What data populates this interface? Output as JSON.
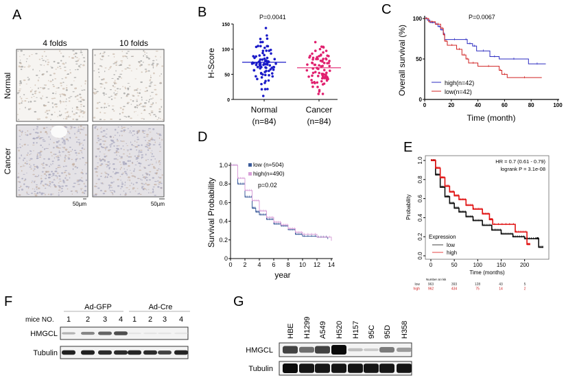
{
  "panels": {
    "A": {
      "label": "A",
      "columns": [
        "4 folds",
        "10 folds"
      ],
      "rows": [
        "Normal",
        "Cancer"
      ],
      "scale_bar": "50µm"
    },
    "B": {
      "label": "B"
    },
    "C": {
      "label": "C"
    },
    "D": {
      "label": "D"
    },
    "E": {
      "label": "E"
    },
    "F": {
      "label": "F",
      "groups": [
        "Ad-GFP",
        "Ad-Cre"
      ],
      "row_header": "mice NO.",
      "lanes": [
        "1",
        "2",
        "3",
        "4",
        "1",
        "2",
        "3",
        "4"
      ],
      "blots": [
        {
          "name": "HMGCL",
          "intensity": [
            0.25,
            0.45,
            0.6,
            0.7,
            0.03,
            0.03,
            0.03,
            0.03
          ]
        },
        {
          "name": "Tubulin",
          "intensity": [
            0.9,
            0.9,
            0.85,
            0.85,
            0.88,
            0.85,
            0.75,
            0.88
          ]
        }
      ]
    },
    "G": {
      "label": "G",
      "lanes": [
        "HBE",
        "H1299",
        "A549",
        "H520",
        "H157",
        "95C",
        "95D",
        "H358"
      ],
      "blots": [
        {
          "name": "HMGCL",
          "intensity": [
            0.75,
            0.55,
            0.75,
            1.0,
            0.2,
            0.15,
            0.5,
            0.35
          ]
        },
        {
          "name": "Tubulin",
          "intensity": [
            1.0,
            0.95,
            0.95,
            0.95,
            0.95,
            0.95,
            0.95,
            0.95
          ]
        }
      ]
    }
  },
  "chart_data": [
    {
      "panel": "B",
      "type": "scatter",
      "annotation": "P=0.0041",
      "ylabel": "H-Score",
      "ylim": [
        0,
        150
      ],
      "yticks": [
        "0",
        "50",
        "100",
        "150"
      ],
      "categories": [
        "Normal\n(n=84)",
        "Cancer\n(n=84)"
      ],
      "category_names": [
        "Normal",
        "Cancer"
      ],
      "category_n": [
        "(n=84)",
        "(n=84)"
      ],
      "series": [
        {
          "n": 84,
          "mean": 74,
          "min": 7,
          "max": 142,
          "color": "#1a1ac8"
        },
        {
          "n": 84,
          "mean": 63,
          "min": 11,
          "max": 114,
          "color": "#e0206e"
        }
      ]
    },
    {
      "panel": "C",
      "type": "line",
      "annotation": "P=0.0067",
      "xlabel": "Time (month)",
      "ylabel": "Overall survival (%)",
      "xlim": [
        0,
        100
      ],
      "ylim": [
        0,
        100
      ],
      "xticks": [
        "0",
        "20",
        "40",
        "60",
        "80",
        "100"
      ],
      "yticks": [
        "0",
        "50",
        "100"
      ],
      "legend": "bottom-left",
      "series": [
        {
          "name": "high(n=42)",
          "color": "#2a2ac0",
          "x": [
            0,
            2,
            4,
            8,
            10,
            12,
            14,
            15,
            30,
            32,
            36,
            39,
            49,
            56,
            78,
            91
          ],
          "y": [
            100,
            98,
            95,
            93,
            90,
            86,
            81,
            74,
            74,
            69,
            66,
            60,
            53,
            50,
            44,
            44
          ]
        },
        {
          "name": "low(n=42)",
          "color": "#d02020",
          "x": [
            0,
            3,
            8,
            12,
            14,
            15,
            17,
            24,
            28,
            31,
            33,
            40,
            56,
            58,
            62,
            88
          ],
          "y": [
            100,
            96,
            93,
            88,
            80,
            72,
            67,
            62,
            55,
            50,
            45,
            41,
            36,
            31,
            27,
            27
          ]
        }
      ]
    },
    {
      "panel": "D",
      "type": "line",
      "annotation": "p=0.02",
      "xlabel": "year",
      "ylabel": "Survival Probability",
      "xlim": [
        0,
        14
      ],
      "ylim": [
        0,
        1
      ],
      "xticks": [
        "0",
        "2",
        "4",
        "6",
        "8",
        "10",
        "12",
        "14"
      ],
      "yticks": [
        "0",
        "0.2",
        "0.4",
        "0.6",
        "0.8",
        "1.0"
      ],
      "legend": "top-center",
      "series": [
        {
          "name": "low (n=504)",
          "color": "#3a5a9a",
          "x": [
            0,
            1,
            2,
            3,
            3.5,
            4,
            5,
            6,
            7,
            8,
            9,
            10,
            12,
            13.5
          ],
          "y": [
            1,
            0.8,
            0.66,
            0.54,
            0.5,
            0.47,
            0.42,
            0.37,
            0.35,
            0.31,
            0.26,
            0.24,
            0.23,
            0.21
          ]
        },
        {
          "name": "high(n=490)",
          "color": "#d8a0d8",
          "x": [
            0,
            1,
            2,
            3,
            4,
            5,
            6,
            7,
            8,
            9,
            10,
            12,
            14
          ],
          "y": [
            1,
            0.86,
            0.73,
            0.62,
            0.51,
            0.44,
            0.39,
            0.36,
            0.32,
            0.28,
            0.26,
            0.23,
            0.19
          ]
        }
      ]
    },
    {
      "panel": "E",
      "type": "line",
      "annotations": [
        "HR = 0.7 (0.61 - 0.79)",
        "logrank P = 3.1e-08"
      ],
      "xlabel": "Time (months)",
      "ylabel": "Probability",
      "xlim": [
        0,
        240
      ],
      "ylim": [
        0,
        1
      ],
      "xticks": [
        "0",
        "50",
        "100",
        "150",
        "200"
      ],
      "yticks": [
        "0.0",
        "0.2",
        "0.4",
        "0.6",
        "0.8",
        "1.0"
      ],
      "legend_title": "Expression",
      "legend": "bottom-left",
      "series": [
        {
          "name": "low",
          "color": "#111111",
          "x": [
            0,
            10,
            20,
            30,
            40,
            50,
            60,
            75,
            90,
            110,
            130,
            150,
            175,
            200,
            225,
            230,
            240
          ],
          "y": [
            1,
            0.85,
            0.72,
            0.62,
            0.55,
            0.5,
            0.46,
            0.41,
            0.37,
            0.32,
            0.27,
            0.23,
            0.2,
            0.18,
            0.18,
            0.09,
            0.09
          ]
        },
        {
          "name": "high",
          "color": "#e01010",
          "x": [
            0,
            10,
            20,
            30,
            40,
            50,
            60,
            75,
            90,
            110,
            125,
            132,
            180,
            205,
            212
          ],
          "y": [
            1,
            0.92,
            0.82,
            0.73,
            0.67,
            0.63,
            0.59,
            0.53,
            0.49,
            0.44,
            0.38,
            0.33,
            0.25,
            0.12,
            0.12
          ]
        }
      ],
      "risk_table": {
        "title": "Number at risk",
        "rows": [
          {
            "label": "low",
            "values": [
              "963",
              "393",
              "128",
              "43",
              "5"
            ],
            "color": "#333333"
          },
          {
            "label": "high",
            "values": [
              "962",
              "434",
              "75",
              "14",
              "2"
            ],
            "color": "#d02020"
          }
        ]
      }
    }
  ]
}
